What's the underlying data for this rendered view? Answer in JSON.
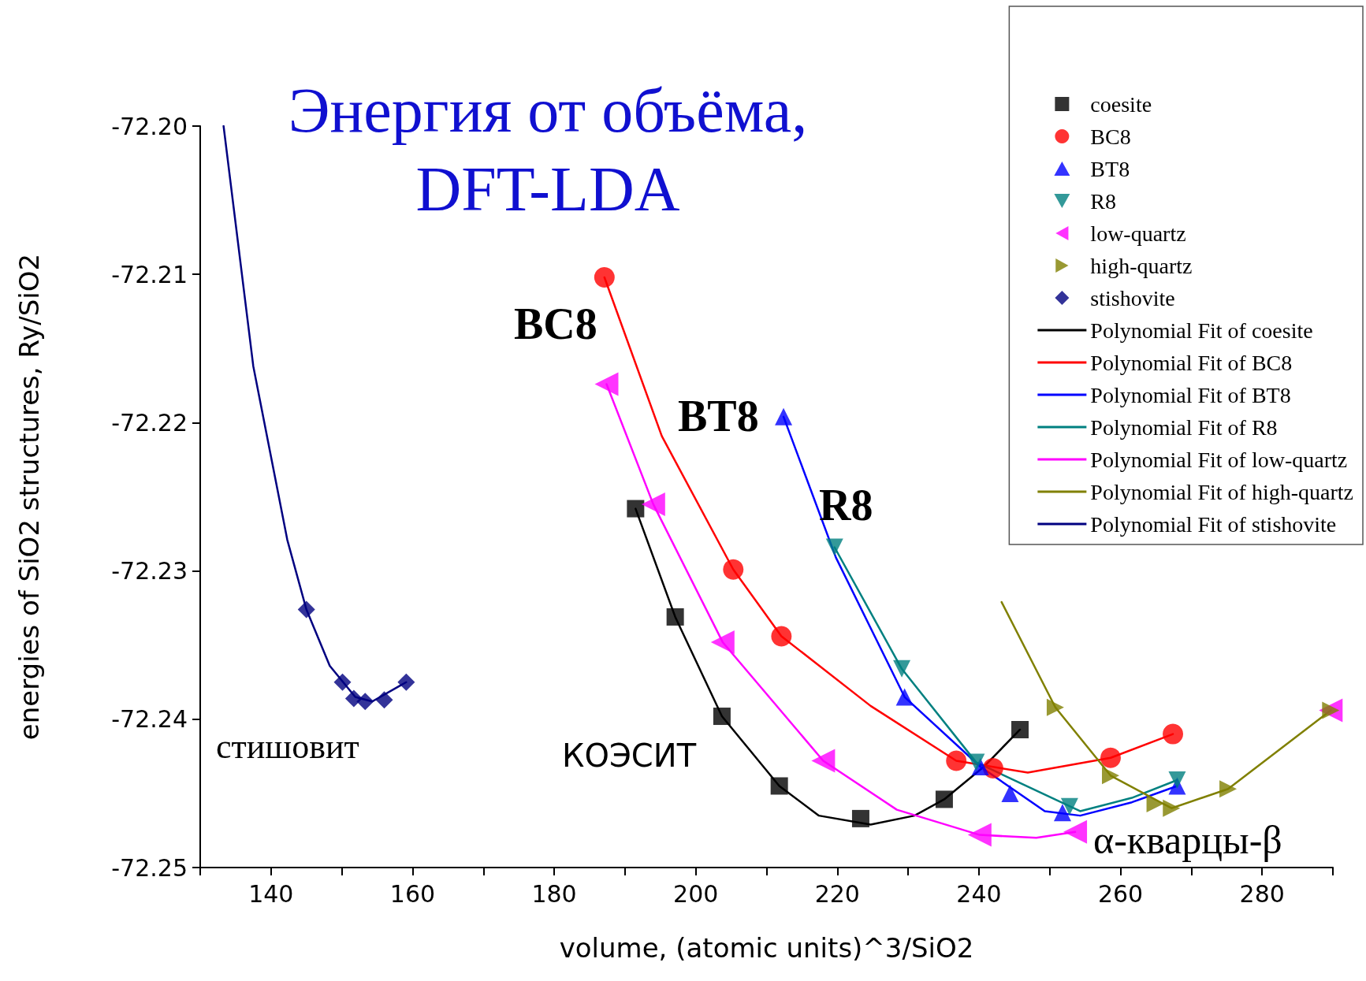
{
  "chart_data": {
    "type": "scatter",
    "title": "Энергия от объёма,\nDFT-LDA",
    "xlabel": "volume, (atomic units)^3/SiO2",
    "ylabel": "energies of SiO2 structures, Ry/SiO2",
    "xlim": [
      130,
      290
    ],
    "ylim": [
      -72.25,
      -72.2
    ],
    "xticks": [
      {
        "value": 130,
        "label": null
      },
      140,
      {
        "value": 150,
        "label": null
      },
      160,
      {
        "value": 170,
        "label": null
      },
      180,
      {
        "value": 190,
        "label": null
      },
      200,
      {
        "value": 210,
        "label": null
      },
      220,
      {
        "value": 230,
        "label": null
      },
      240,
      {
        "value": 250,
        "label": null
      },
      260,
      {
        "value": 270,
        "label": null
      },
      280,
      {
        "value": 290,
        "label": null
      }
    ],
    "yticks": [
      {
        "value": -72.2,
        "label": "-72.20"
      },
      -72.21,
      -72.22,
      -72.23,
      -72.24,
      -72.25
    ],
    "grid": false,
    "legend": "top right",
    "annotations": [
      "BC8",
      "BT8",
      "R8",
      "КОЭСИТ",
      "стишовит",
      "α-кварцы-β"
    ],
    "series": [
      {
        "name": "coesite",
        "type": "scatter",
        "marker": "square",
        "color": "#000000",
        "x": [
          191.5,
          197.1,
          203.7,
          211.8,
          223.3,
          235.1,
          245.8
        ],
        "values": [
          -72.2258,
          -72.2331,
          -72.2398,
          -72.2445,
          -72.2467,
          -72.2454,
          -72.2407
        ]
      },
      {
        "name": "BC8",
        "type": "scatter",
        "marker": "circle",
        "color": "#ff0000",
        "x": [
          187.1,
          205.3,
          212.1,
          236.8,
          242.0,
          258.6,
          267.4
        ],
        "values": [
          -72.2102,
          -72.2299,
          -72.2344,
          -72.2428,
          -72.2433,
          -72.2426,
          -72.241
        ]
      },
      {
        "name": "BT8",
        "type": "scatter",
        "marker": "triangle",
        "color": "#0000ff",
        "x": [
          212.4,
          229.5,
          240.2,
          244.4,
          251.8,
          268.0
        ],
        "values": [
          -72.2196,
          -72.2385,
          -72.2432,
          -72.245,
          -72.2463,
          -72.2445
        ]
      },
      {
        "name": "R8",
        "type": "scatter",
        "marker": "triangle-down",
        "color": "#008080",
        "x": [
          219.6,
          229.1,
          239.6,
          252.8,
          268.0
        ],
        "values": [
          -72.2284,
          -72.2366,
          -72.2429,
          -72.2459,
          -72.2441
        ]
      },
      {
        "name": "low-quartz",
        "type": "scatter",
        "marker": "triangle-left",
        "color": "#ff00ff",
        "x": [
          187.4,
          194.0,
          203.8,
          218.0,
          240.1,
          253.6,
          289.7
        ],
        "values": [
          -72.2174,
          -72.2255,
          -72.2348,
          -72.2428,
          -72.2478,
          -72.2476,
          -72.2394
        ]
      },
      {
        "name": "high-quartz",
        "type": "scatter",
        "marker": "triangle-right",
        "color": "#808000",
        "x": [
          250.8,
          258.6,
          264.9,
          267.2,
          275.2,
          289.7
        ],
        "values": [
          -72.2392,
          -72.2438,
          -72.2457,
          -72.246,
          -72.2447,
          -72.2394
        ]
      },
      {
        "name": "stishovite",
        "type": "scatter",
        "marker": "diamond",
        "color": "#000080",
        "x": [
          145.0,
          150.1,
          151.7,
          153.3,
          156.0,
          159.1
        ],
        "values": [
          -72.2326,
          -72.2375,
          -72.2386,
          -72.2388,
          -72.2387,
          -72.2375
        ]
      },
      {
        "name": "Polynomial Fit of coesite",
        "type": "line",
        "marker": "none",
        "color": "#000000",
        "x": [
          191.5,
          197.1,
          203.7,
          211.8,
          217.4,
          224.7,
          230.9,
          235.1,
          240.7,
          245.8
        ],
        "values": [
          -72.2258,
          -72.2331,
          -72.2398,
          -72.2445,
          -72.2465,
          -72.2471,
          -72.2465,
          -72.2454,
          -72.2432,
          -72.2407
        ]
      },
      {
        "name": "Polynomial Fit of BC8",
        "type": "line",
        "marker": "none",
        "color": "#ff0000",
        "x": [
          187.1,
          195.2,
          205.3,
          212.1,
          224.7,
          236.8,
          246.9,
          258.6,
          267.4
        ],
        "values": [
          -72.2102,
          -72.2209,
          -72.2299,
          -72.2344,
          -72.2391,
          -72.2428,
          -72.2436,
          -72.2426,
          -72.241
        ]
      },
      {
        "name": "Polynomial Fit of BT8",
        "type": "line",
        "marker": "none",
        "color": "#0000ff",
        "x": [
          212.4,
          219.8,
          229.5,
          240.2,
          249.3,
          254.3,
          261.6,
          268.0
        ],
        "values": [
          -72.2196,
          -72.2291,
          -72.2385,
          -72.2432,
          -72.2462,
          -72.2465,
          -72.2456,
          -72.2445
        ]
      },
      {
        "name": "Polynomial Fit of R8",
        "type": "line",
        "marker": "none",
        "color": "#008080",
        "x": [
          219.6,
          229.1,
          239.6,
          254.3,
          261.6,
          268.0
        ],
        "values": [
          -72.2284,
          -72.2366,
          -72.2429,
          -72.2462,
          -72.2453,
          -72.2441
        ]
      },
      {
        "name": "Polynomial Fit of low-quartz",
        "type": "line",
        "marker": "none",
        "color": "#ff00ff",
        "x": [
          187.4,
          194.0,
          203.8,
          218.0,
          228.4,
          240.1,
          248.1,
          253.6
        ],
        "values": [
          -72.2174,
          -72.2255,
          -72.2348,
          -72.2428,
          -72.2461,
          -72.2478,
          -72.248,
          -72.2476
        ]
      },
      {
        "name": "Polynomial Fit of high-quartz",
        "type": "line",
        "marker": "none",
        "color": "#808000",
        "x": [
          243.2,
          250.8,
          258.6,
          267.2,
          275.2,
          289.7
        ],
        "values": [
          -72.2321,
          -72.2392,
          -72.2438,
          -72.246,
          -72.2447,
          -72.2394
        ]
      },
      {
        "name": "Polynomial Fit of stishovite",
        "type": "line",
        "marker": "none",
        "color": "#000080",
        "x": [
          133.3,
          137.5,
          142.3,
          145.0,
          148.3,
          151.9,
          154.3,
          159.1
        ],
        "values": [
          -72.2,
          -72.2162,
          -72.2279,
          -72.2326,
          -72.2364,
          -72.2385,
          -72.2388,
          -72.2375
        ]
      }
    ]
  }
}
